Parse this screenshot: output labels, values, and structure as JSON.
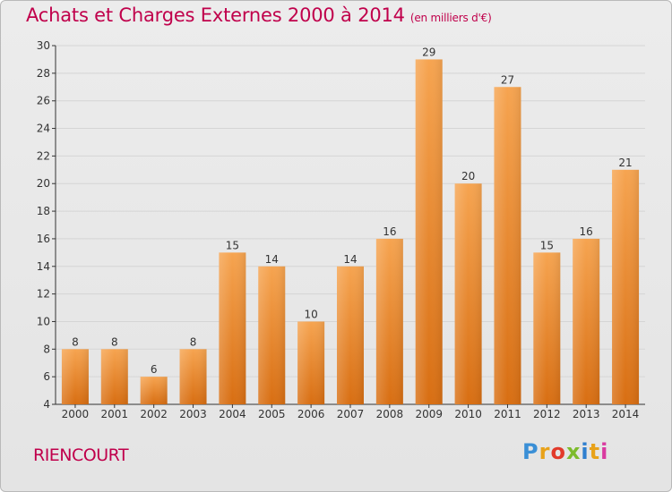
{
  "title": "Achats et Charges Externes 2000 à 2014",
  "subtitle": "(en milliers d'€)",
  "commune": "RIENCOURT",
  "logo": "Proxiti",
  "colors": {
    "title": "#c0004b",
    "bar_top": "#f6a450",
    "bar_bottom": "#d86e12",
    "axis": "#333333",
    "grid": "#d5d5d5"
  },
  "chart_data": {
    "type": "bar",
    "categories": [
      "2000",
      "2001",
      "2002",
      "2003",
      "2004",
      "2005",
      "2006",
      "2007",
      "2008",
      "2009",
      "2010",
      "2011",
      "2012",
      "2013",
      "2014"
    ],
    "values": [
      8,
      8,
      6,
      8,
      15,
      14,
      10,
      14,
      16,
      29,
      20,
      27,
      15,
      16,
      21
    ],
    "ylim": [
      4,
      30
    ],
    "yticks": [
      4,
      6,
      8,
      10,
      12,
      14,
      16,
      18,
      20,
      22,
      24,
      26,
      28,
      30
    ],
    "grid": true,
    "data_labels": true
  }
}
